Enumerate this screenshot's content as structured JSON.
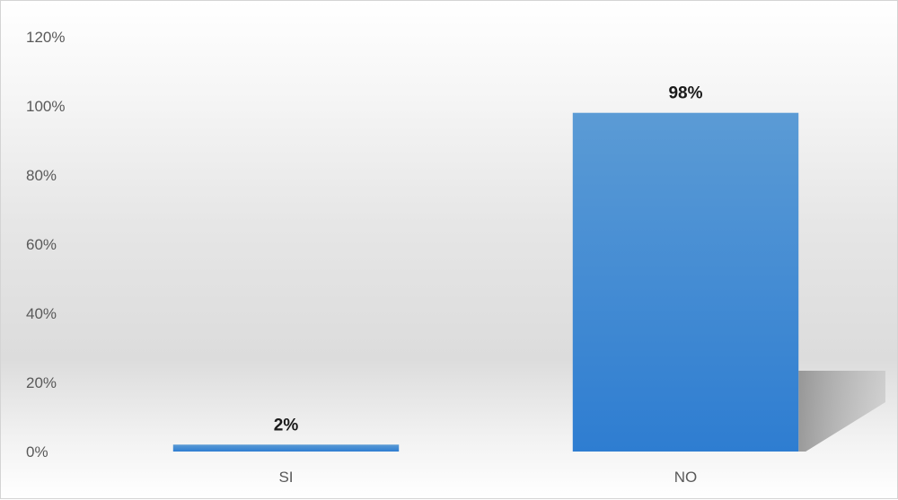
{
  "chart_data": {
    "type": "bar",
    "categories": [
      "SI",
      "NO"
    ],
    "values": [
      2,
      98
    ],
    "data_labels": [
      "2%",
      "98%"
    ],
    "ylim": [
      0,
      120
    ],
    "yticks": [
      0,
      20,
      40,
      60,
      80,
      100,
      120
    ],
    "ytick_labels": [
      "0%",
      "20%",
      "40%",
      "60%",
      "80%",
      "100%",
      "120%"
    ],
    "unit": "%",
    "grid": false,
    "legend": "none",
    "bar_color_top": "#5b9bd5",
    "bar_color_bottom": "#2e7dd1"
  }
}
